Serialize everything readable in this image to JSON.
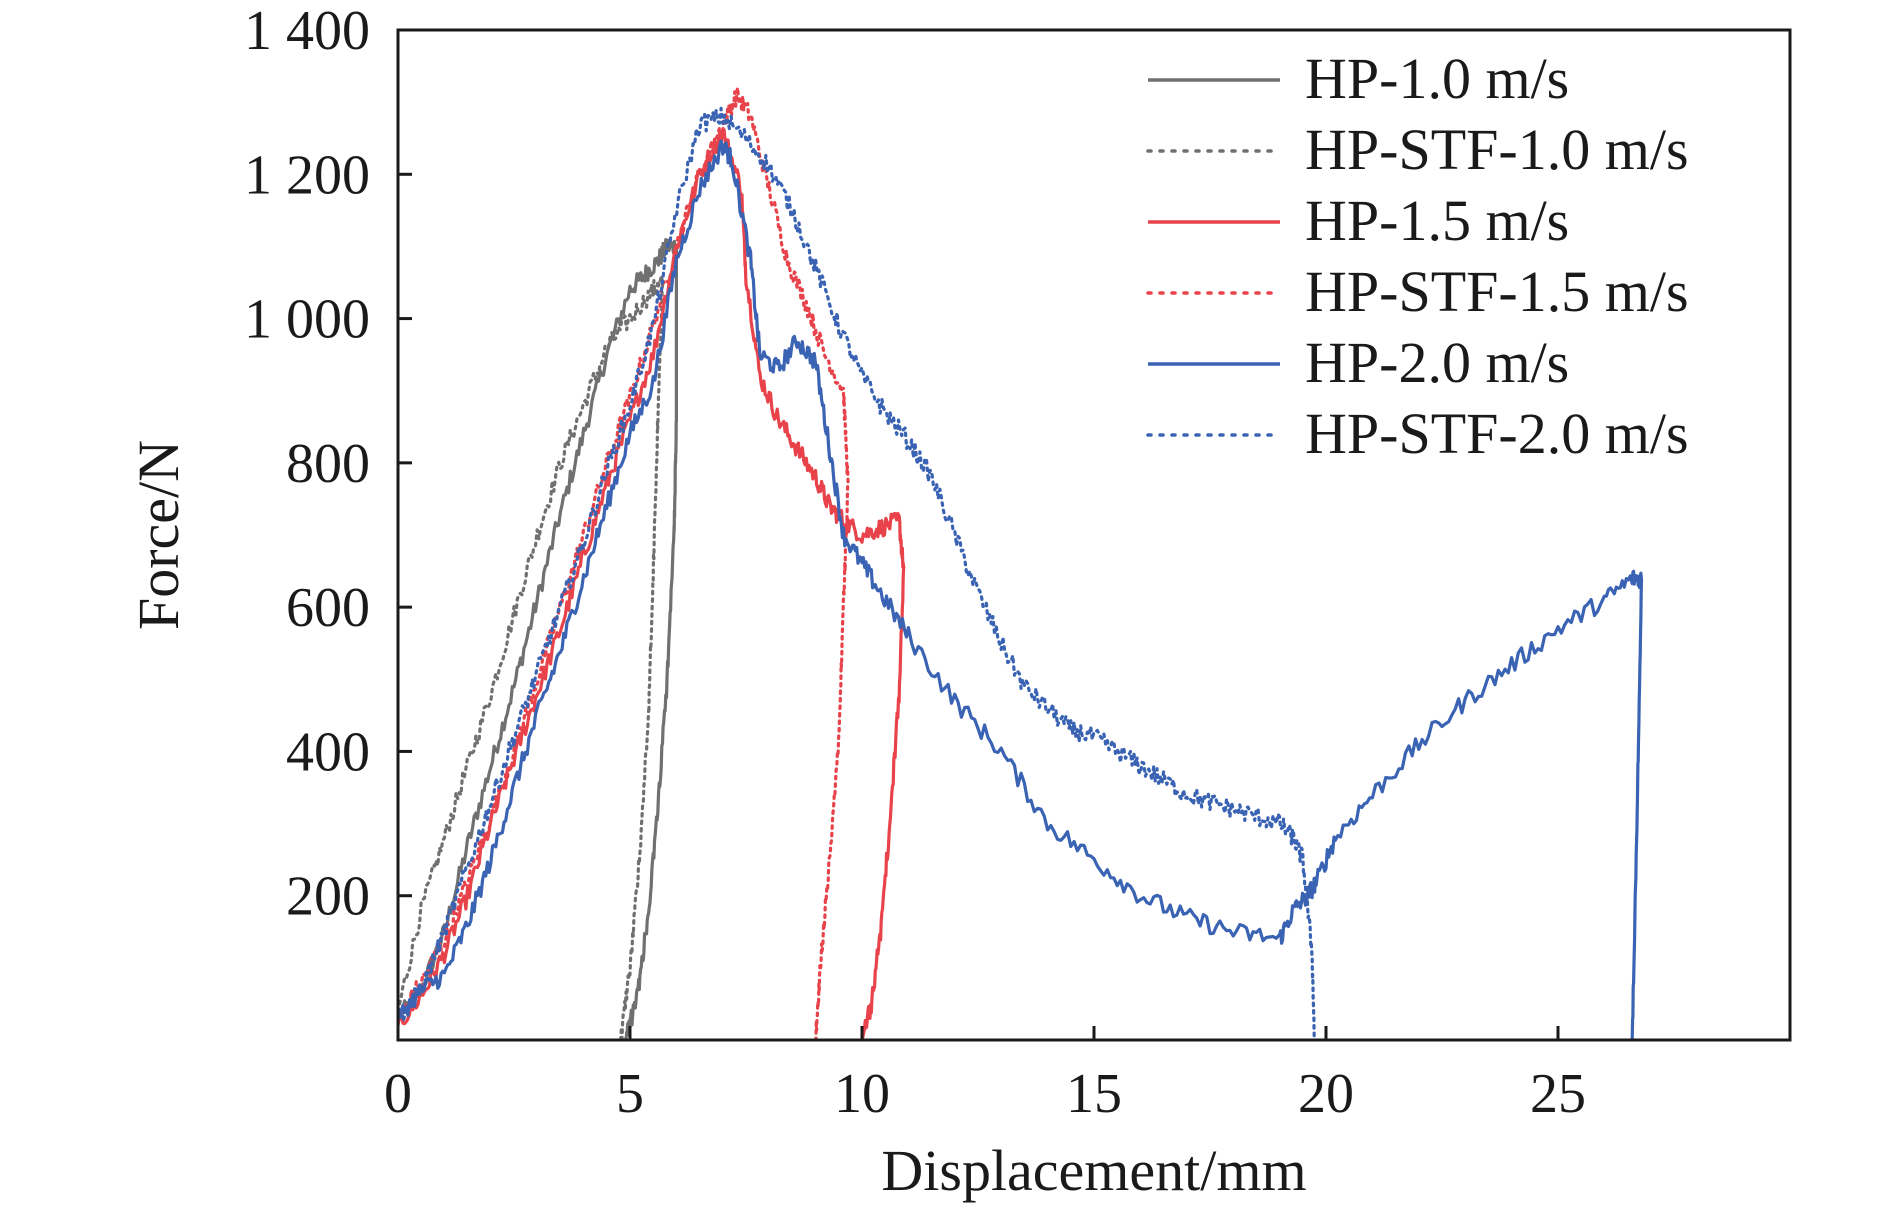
{
  "chart_data": {
    "type": "line",
    "xlabel": "Displacement/mm",
    "ylabel": "Force/N",
    "xlim": [
      0,
      30
    ],
    "ylim": [
      0,
      1400
    ],
    "x_ticks": [
      0,
      5,
      10,
      15,
      20,
      25
    ],
    "x_tick_labels": [
      "0",
      "5",
      "10",
      "15",
      "20",
      "25"
    ],
    "y_ticks": [
      200,
      400,
      600,
      800,
      1000,
      1200,
      1400
    ],
    "y_tick_labels": [
      "200",
      "400",
      "600",
      "800",
      "1 000",
      "1 200",
      "1 400"
    ],
    "grid": false,
    "legend_position": "top-right",
    "series": [
      {
        "name": "HP-1.0 m/s",
        "color": "#707070",
        "style": "solid",
        "x": [
          0,
          0.5,
          1.0,
          1.5,
          2.0,
          2.5,
          3.0,
          3.5,
          4.0,
          4.5,
          5.0,
          5.3,
          5.6,
          5.8,
          6.0,
          6.0,
          5.95,
          5.8,
          5.6,
          5.4,
          5.2,
          5.0,
          4.9
        ],
        "y": [
          30,
          70,
          150,
          270,
          380,
          490,
          610,
          730,
          840,
          950,
          1040,
          1060,
          1080,
          1100,
          1100,
          860,
          700,
          500,
          320,
          180,
          80,
          20,
          0
        ]
      },
      {
        "name": "HP-STF-1.0 m/s",
        "color": "#707070",
        "style": "dotted",
        "x": [
          0,
          0.5,
          1.0,
          1.5,
          2.0,
          2.5,
          3.0,
          3.5,
          4.0,
          4.5,
          5.0,
          5.5,
          5.7,
          5.6,
          5.5,
          5.4,
          5.2,
          5.0,
          4.8
        ],
        "y": [
          40,
          180,
          280,
          380,
          480,
          590,
          700,
          800,
          880,
          960,
          1000,
          1040,
          1050,
          860,
          650,
          450,
          250,
          100,
          0
        ]
      },
      {
        "name": "HP-1.5 m/s",
        "color": "#e8434a",
        "style": "solid",
        "x": [
          0,
          0.5,
          1.0,
          1.5,
          2.0,
          2.5,
          3.0,
          3.5,
          4.0,
          4.5,
          5.0,
          5.5,
          6.0,
          6.5,
          7.0,
          7.4,
          7.5,
          7.8,
          8.2,
          8.6,
          9.0,
          9.3,
          9.6,
          10.0,
          10.4,
          10.8,
          10.9,
          10.8,
          10.6,
          10.4,
          10.2,
          10.0
        ],
        "y": [
          20,
          60,
          120,
          200,
          300,
          390,
          480,
          570,
          670,
          770,
          860,
          950,
          1100,
          1200,
          1260,
          1180,
          1060,
          920,
          860,
          820,
          780,
          740,
          720,
          700,
          710,
          720,
          650,
          480,
          300,
          150,
          50,
          0
        ]
      },
      {
        "name": "HP-STF-1.5 m/s",
        "color": "#e8434a",
        "style": "dotted",
        "x": [
          0,
          0.5,
          1.0,
          1.5,
          2.0,
          2.5,
          3.0,
          3.5,
          4.0,
          4.5,
          5.0,
          5.5,
          6.0,
          6.5,
          7.0,
          7.3,
          7.6,
          8.0,
          8.4,
          8.8,
          9.2,
          9.6,
          9.7,
          9.6,
          9.5,
          9.3,
          9.1,
          9.0
        ],
        "y": [
          30,
          80,
          140,
          220,
          310,
          400,
          500,
          600,
          700,
          800,
          890,
          990,
          1100,
          1200,
          1270,
          1310,
          1280,
          1180,
          1080,
          1020,
          950,
          900,
          770,
          600,
          420,
          250,
          100,
          0
        ]
      },
      {
        "name": "HP-2.0 m/s",
        "color": "#3a63b3",
        "style": "solid",
        "x": [
          0,
          0.5,
          1.0,
          1.5,
          2.0,
          2.5,
          3.0,
          3.5,
          4.0,
          4.5,
          5.0,
          5.5,
          6.0,
          6.5,
          7.0,
          7.2,
          7.6,
          7.8,
          8.2,
          8.6,
          9.0,
          9.3,
          9.6,
          10.0,
          10.4,
          11.0,
          12.0,
          13.0,
          14.0,
          15.0,
          16.0,
          17.0,
          18.0,
          19.0,
          19.3,
          19.6,
          19.8,
          20.2,
          21.0,
          22.0,
          23.0,
          24.0,
          25.0,
          26.0,
          26.6,
          26.8,
          26.7,
          26.6
        ],
        "y": [
          30,
          70,
          90,
          160,
          250,
          350,
          450,
          540,
          640,
          740,
          840,
          910,
          1080,
          1180,
          1240,
          1220,
          1080,
          950,
          930,
          970,
          940,
          820,
          700,
          660,
          620,
          560,
          470,
          400,
          300,
          250,
          200,
          170,
          150,
          140,
          180,
          200,
          220,
          280,
          340,
          410,
          470,
          520,
          570,
          610,
          640,
          640,
          300,
          0
        ]
      },
      {
        "name": "HP-STF-2.0 m/s",
        "color": "#3a63b3",
        "style": "dotted",
        "x": [
          0,
          0.5,
          1.0,
          1.5,
          2.0,
          2.5,
          3.0,
          3.5,
          4.0,
          4.5,
          5.0,
          5.5,
          6.0,
          6.5,
          7.0,
          7.5,
          8.0,
          8.5,
          9.0,
          9.5,
          10.0,
          10.5,
          11.0,
          11.5,
          12.0,
          12.5,
          13.0,
          13.5,
          14.0,
          14.5,
          15.0,
          15.5,
          16.0,
          16.5,
          17.0,
          17.5,
          18.0,
          18.5,
          19.0,
          19.3,
          19.5,
          19.7,
          19.75
        ],
        "y": [
          30,
          70,
          150,
          240,
          330,
          420,
          510,
          600,
          690,
          790,
          880,
          990,
          1150,
          1270,
          1280,
          1250,
          1210,
          1150,
          1070,
          990,
          920,
          870,
          830,
          780,
          700,
          620,
          550,
          490,
          460,
          430,
          420,
          400,
          380,
          360,
          340,
          330,
          320,
          310,
          300,
          280,
          250,
          120,
          0
        ]
      }
    ]
  }
}
